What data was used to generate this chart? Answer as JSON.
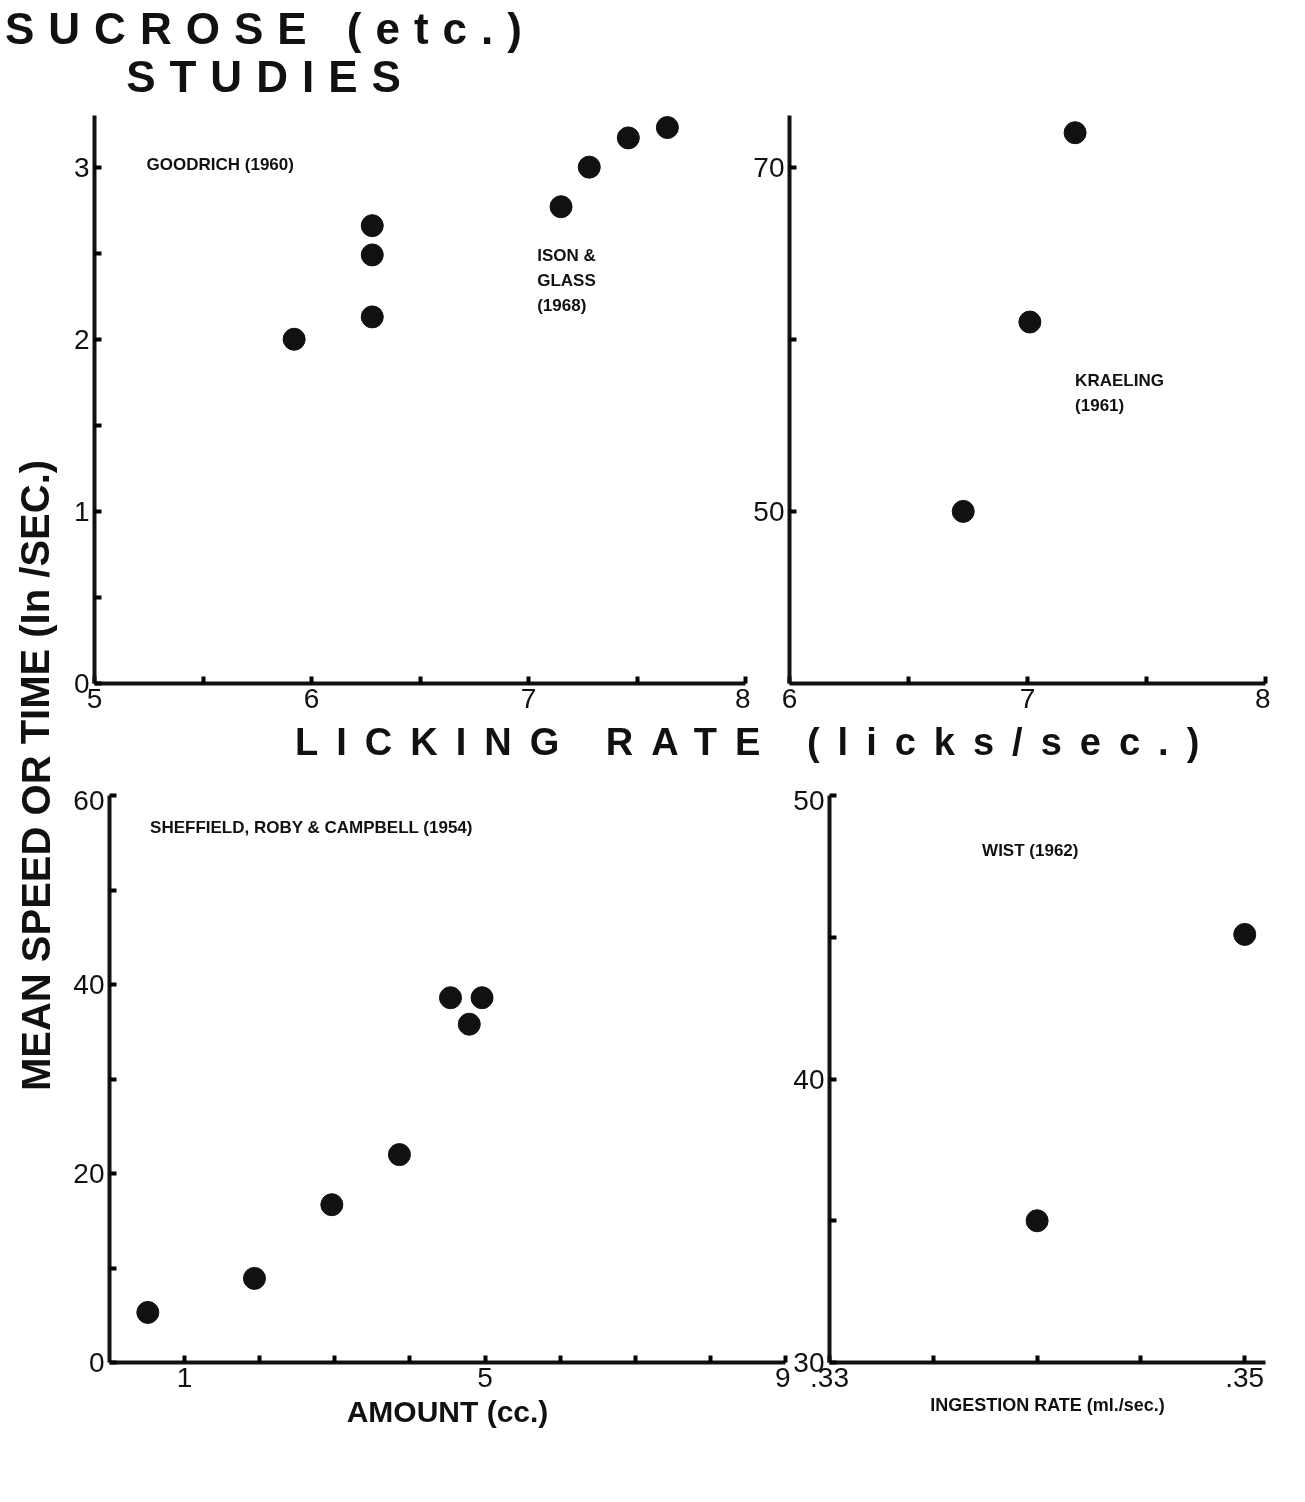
{
  "chart_data": [
    {
      "type": "scatter",
      "title": "SUCROSE (etc.)",
      "subtitle": "STUDIES",
      "ylabel": "MEAN SPEED OR TIME (In /SEC.)",
      "xlabel": "LICKING RATE (licks/sec.)",
      "x": [
        5.92,
        6.28,
        6.28,
        6.28,
        7.15,
        7.28,
        7.46,
        7.64
      ],
      "values": [
        2.0,
        2.13,
        2.49,
        2.66,
        2.77,
        3.0,
        3.17,
        3.23
      ],
      "color": "#111111",
      "marker": "circle",
      "xlim": [
        5,
        8
      ],
      "ylim": [
        0,
        3.3
      ],
      "xticks": [
        5,
        {
          "value": 5.5,
          "label": null
        },
        6,
        {
          "value": 6.5,
          "label": null
        },
        7,
        {
          "value": 7.5,
          "label": null
        },
        8
      ],
      "yticks": [
        0,
        {
          "value": 0.5,
          "label": null
        },
        1,
        {
          "value": 1.5,
          "label": null
        },
        2,
        {
          "value": 2.5,
          "label": null
        },
        3
      ],
      "annotations": [
        "GOODRICH (1960)",
        "ISON &\nGLASS\n(1968)"
      ]
    },
    {
      "type": "scatter",
      "x": [
        6.73,
        7.01,
        7.2
      ],
      "values": [
        50,
        61,
        72
      ],
      "color": "#111111",
      "marker": "circle",
      "xlim": [
        6,
        8
      ],
      "ylim": [
        40,
        73
      ],
      "xticks": [
        6,
        {
          "value": 6.5,
          "label": null
        },
        7,
        {
          "value": 7.5,
          "label": null
        },
        8
      ],
      "yticks": [
        50,
        {
          "value": 60,
          "label": null
        },
        70
      ],
      "annotations": [
        "KRAELING\n(1961)"
      ]
    },
    {
      "type": "scatter",
      "xlabel": "AMOUNT (cc.)",
      "x": [
        0.51,
        1.93,
        2.96,
        3.86,
        4.54,
        4.96,
        4.79
      ],
      "values": [
        5.3,
        8.9,
        16.7,
        22.0,
        38.6,
        38.6,
        35.8
      ],
      "color": "#111111",
      "marker": "circle",
      "xlim": [
        0,
        9
      ],
      "ylim": [
        0,
        60
      ],
      "xticks": [
        1,
        {
          "value": 2,
          "label": null
        },
        {
          "value": 3,
          "label": null
        },
        {
          "value": 4,
          "label": null
        },
        5,
        {
          "value": 6,
          "label": null
        },
        {
          "value": 7,
          "label": null
        },
        {
          "value": 8,
          "label": null
        },
        9
      ],
      "yticks": [
        0,
        {
          "value": 10,
          "label": null
        },
        20,
        {
          "value": 30,
          "label": null
        },
        40,
        {
          "value": 50,
          "label": null
        },
        60
      ],
      "annotations": [
        "SHEFFIELD, ROBY & CAMPBELL (1954)"
      ]
    },
    {
      "type": "scatter",
      "xlabel": "INGESTION RATE (ml./sec.)",
      "x": [
        0.34,
        0.35
      ],
      "values": [
        35.0,
        45.1
      ],
      "color": "#111111",
      "marker": "circle",
      "xlim": [
        0.33,
        0.351
      ],
      "ylim": [
        30,
        50
      ],
      "xticks": [
        {
          "value": 0.33,
          "label": ".33"
        },
        {
          "value": 0.335,
          "label": null
        },
        {
          "value": 0.34,
          "label": null
        },
        {
          "value": 0.345,
          "label": null
        },
        {
          "value": 0.35,
          "label": ".35"
        }
      ],
      "yticks": [
        30,
        {
          "value": 35,
          "label": null
        },
        40,
        {
          "value": 45,
          "label": null
        },
        50
      ],
      "annotations": [
        "WIST (1962)"
      ]
    }
  ]
}
